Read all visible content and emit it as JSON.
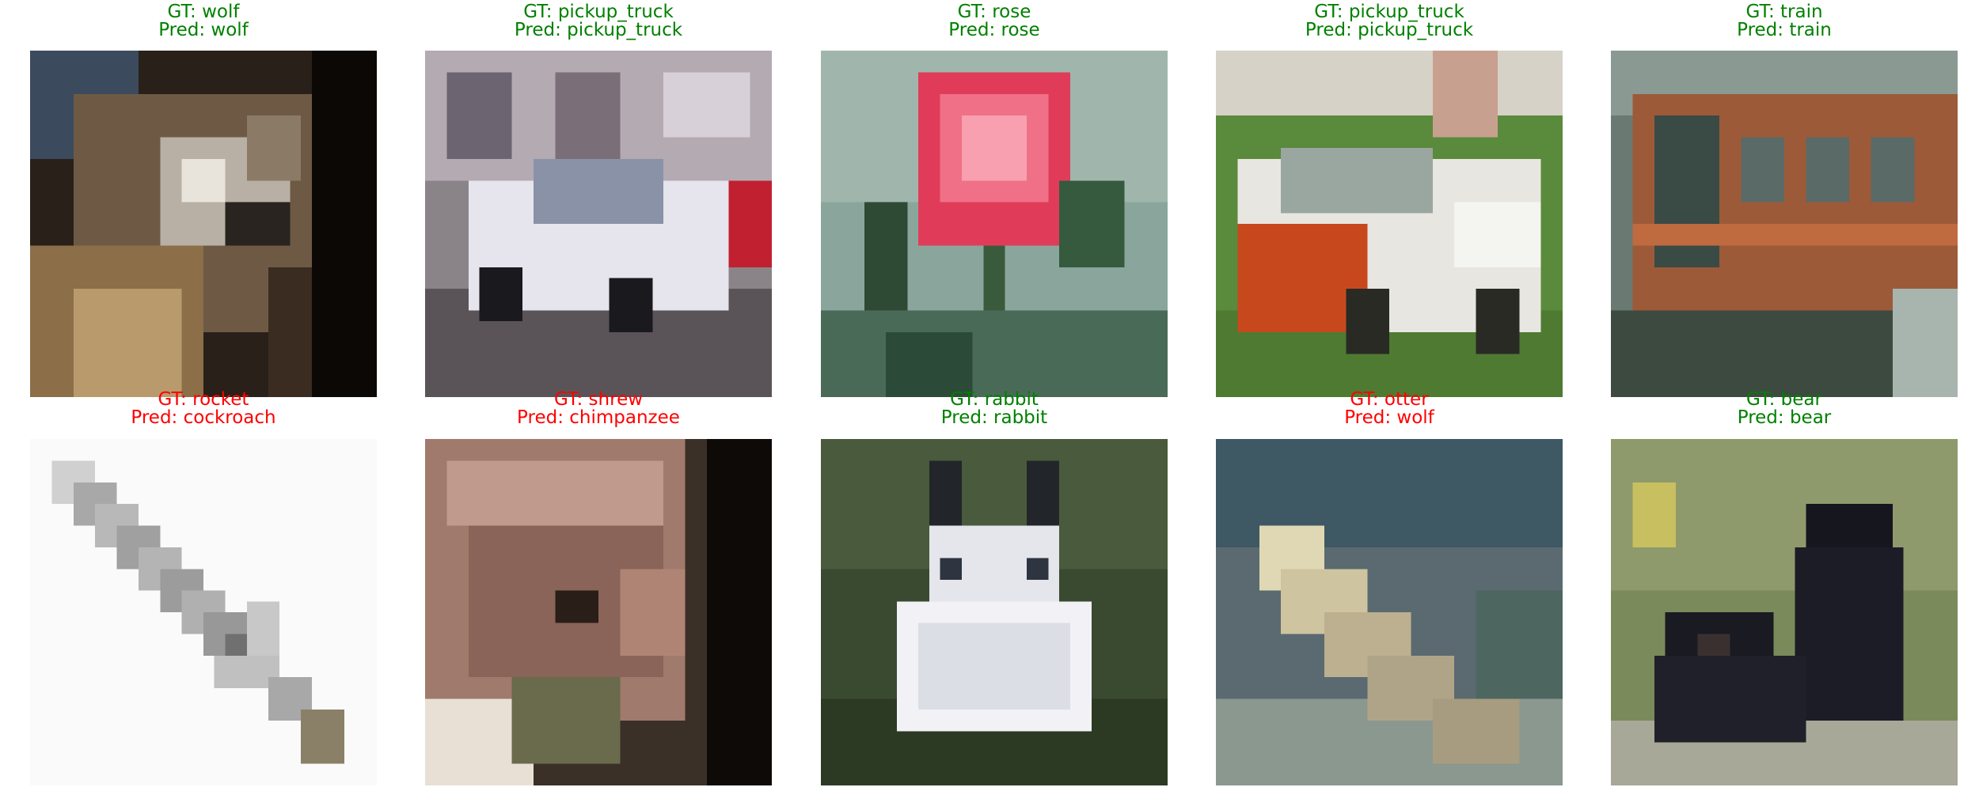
{
  "figure": {
    "panels": [
      {
        "gt": "GT: wolf",
        "pred": "Pred: wolf",
        "correct": true,
        "subject": "wolf"
      },
      {
        "gt": "GT: pickup_truck",
        "pred": "Pred: pickup_truck",
        "correct": true,
        "subject": "pickup-truck"
      },
      {
        "gt": "GT: rose",
        "pred": "Pred: rose",
        "correct": true,
        "subject": "rose"
      },
      {
        "gt": "GT: pickup_truck",
        "pred": "Pred: pickup_truck",
        "correct": true,
        "subject": "pickup-truck"
      },
      {
        "gt": "GT: train",
        "pred": "Pred: train",
        "correct": true,
        "subject": "train"
      },
      {
        "gt": "GT: rocket",
        "pred": "Pred: cockroach",
        "correct": false,
        "subject": "rocket"
      },
      {
        "gt": "GT: shrew",
        "pred": "Pred: chimpanzee",
        "correct": false,
        "subject": "shrew"
      },
      {
        "gt": "GT: rabbit",
        "pred": "Pred: rabbit",
        "correct": true,
        "subject": "rabbit"
      },
      {
        "gt": "GT: otter",
        "pred": "Pred: wolf",
        "correct": false,
        "subject": "otter"
      },
      {
        "gt": "GT: bear",
        "pred": "Pred: bear",
        "correct": true,
        "subject": "bear"
      }
    ],
    "colors": {
      "correct": "#008000",
      "incorrect": "#ff0000"
    }
  }
}
